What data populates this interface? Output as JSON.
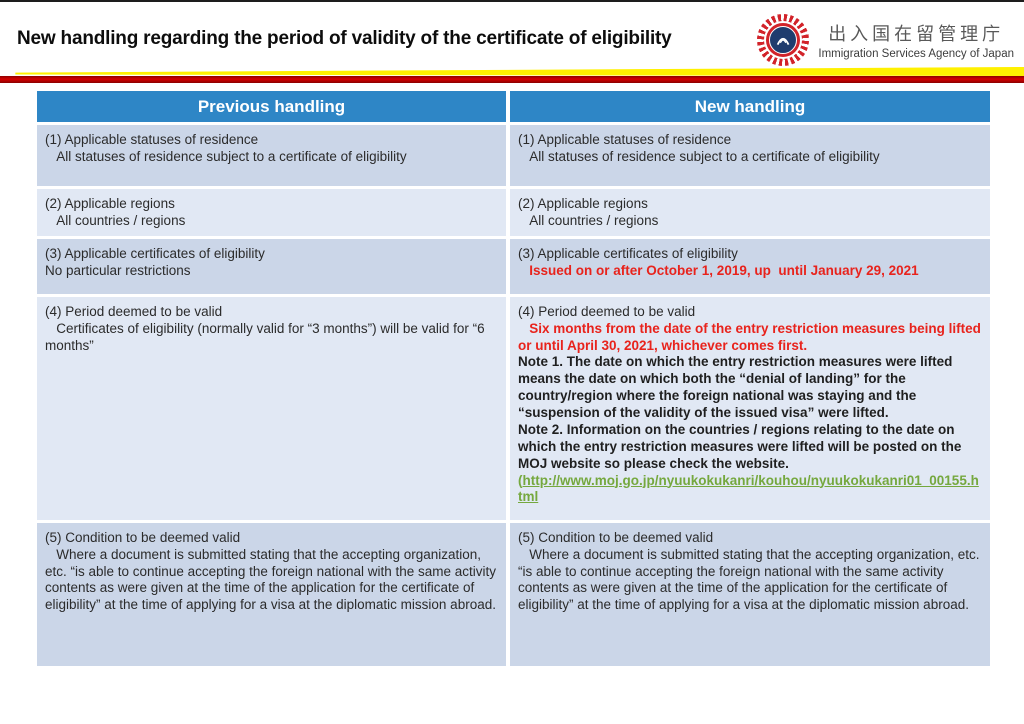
{
  "page": {
    "title": "New handling regarding the period of validity of the certificate of eligibility",
    "agency": {
      "logo": "immigration-services-agency-emblem",
      "name_jp": "出入国在留管理庁",
      "name_en": "Immigration Services Agency of Japan"
    }
  },
  "colors": {
    "header_blue": "#2E86C6",
    "row_band_dark": "#CBD6E8",
    "row_band_light": "#E1E8F4",
    "highlight_red": "#E8231C",
    "hyperlink_green": "#75A83E",
    "divider_yellow": "#FFF100",
    "divider_red": "#C00000"
  },
  "table": {
    "columns": [
      {
        "key": "previous",
        "label": "Previous handling"
      },
      {
        "key": "new",
        "label": "New handling"
      }
    ],
    "rows": [
      {
        "band": "dark",
        "previous": [
          {
            "style": "normal",
            "text": "(1) Applicable statuses of residence\n   All statuses of residence subject to a certificate of eligibility"
          }
        ],
        "new": [
          {
            "style": "normal",
            "text": "(1) Applicable statuses of residence\n   All statuses of residence subject to a certificate of eligibility"
          }
        ]
      },
      {
        "band": "light",
        "previous": [
          {
            "style": "normal",
            "text": "(2) Applicable regions\n   All countries / regions"
          }
        ],
        "new": [
          {
            "style": "normal",
            "text": "(2) Applicable regions\n   All countries / regions"
          }
        ]
      },
      {
        "band": "dark",
        "previous": [
          {
            "style": "normal",
            "text": "(3) Applicable certificates of eligibility\nNo particular restrictions"
          }
        ],
        "new": [
          {
            "style": "normal",
            "text": "(3) Applicable certificates of eligibility\n"
          },
          {
            "style": "red-bold",
            "text": "   Issued on or after October 1, 2019, up  until January 29, 2021"
          }
        ]
      },
      {
        "band": "light",
        "previous": [
          {
            "style": "normal",
            "text": "(4) Period deemed to be valid\n   Certificates of eligibility (normally valid for “3 months”) will be valid for “6 months”"
          }
        ],
        "new": [
          {
            "style": "normal",
            "text": "(4) Period deemed to be valid\n"
          },
          {
            "style": "red-bold",
            "text": "   Six months from the date of the entry restriction measures being lifted or until April 30, 2021, whichever comes first.\n"
          },
          {
            "style": "bold",
            "text": "Note 1. The date on which the entry restriction measures were lifted means the date on which both the “denial of landing” for the country/region where the foreign national was staying and the “suspension of the validity of the issued visa” were lifted.\nNote 2. Information on the countries / regions relating to the date on which the entry restriction measures were lifted will be posted on the MOJ website so please check the website.\n"
          },
          {
            "style": "green-bold",
            "text": "("
          },
          {
            "style": "link",
            "text": "http://www.moj.go.jp/nyuukokukanri/kouhou/nyuukokukanri01_00155.html"
          }
        ]
      },
      {
        "band": "dark",
        "previous": [
          {
            "style": "normal",
            "text": "(5) Condition to be deemed valid\n   Where a document is submitted stating that the accepting organization, etc. “is able to continue accepting the foreign national with the same activity contents as were given at the time of the application for the certificate of eligibility” at the time of applying for a visa at the diplomatic mission abroad."
          }
        ],
        "new": [
          {
            "style": "normal",
            "text": "(5) Condition to be deemed valid\n   Where a document is submitted stating that the accepting organization, etc. “is able to continue accepting the foreign national with the same activity contents as were given at the time of the application for the certificate of eligibility” at the time of applying for a visa at the diplomatic mission abroad."
          }
        ]
      }
    ]
  }
}
